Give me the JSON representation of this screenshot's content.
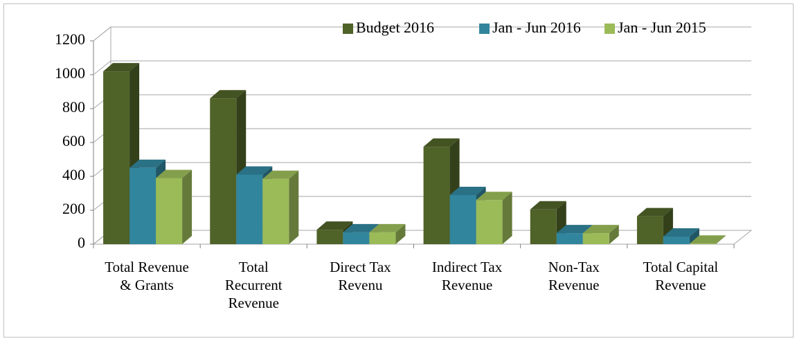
{
  "chart_data": {
    "type": "bar3d",
    "categories": [
      "Total Revenue & Grants",
      "Total Recurrent Revenue",
      "Direct Tax Revenu",
      "Indirect Tax Revenue",
      "Non-Tax Revenue",
      "Total Capital Revenue"
    ],
    "series": [
      {
        "name": "Budget 2016",
        "color": "#4f6228",
        "values": [
          1020,
          860,
          85,
          575,
          205,
          165
        ]
      },
      {
        "name": "Jan - Jun 2016",
        "color": "#31859c",
        "values": [
          450,
          410,
          70,
          290,
          65,
          45
        ]
      },
      {
        "name": "Jan - Jun 2015",
        "color": "#9bbb59",
        "values": [
          390,
          385,
          70,
          260,
          65,
          3
        ]
      }
    ],
    "ylim": [
      0,
      1200
    ],
    "yticks": [
      0,
      200,
      400,
      600,
      800,
      1000,
      1200
    ],
    "grid": true,
    "legend": "top-right"
  }
}
